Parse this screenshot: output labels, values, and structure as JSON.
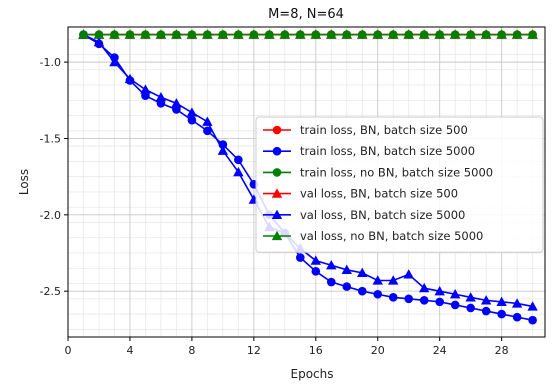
{
  "chart_data": {
    "type": "line",
    "title": "M=8, N=64",
    "xlabel": "Epochs",
    "ylabel": "Loss",
    "xlim": [
      0,
      30.8
    ],
    "ylim": [
      -2.8,
      -0.77
    ],
    "x_ticks": [
      0,
      4,
      8,
      12,
      16,
      20,
      24,
      28
    ],
    "y_ticks": [
      -2.5,
      -2.0,
      -1.5,
      -1.0
    ],
    "x_tick_labels": [
      "0",
      "4",
      "8",
      "12",
      "16",
      "20",
      "24",
      "28"
    ],
    "y_tick_labels": [
      "-2.5",
      "-2.0",
      "-1.5",
      "-1.0"
    ],
    "grid": true,
    "minor_grid": true,
    "legend_position": "center-right",
    "x": [
      1,
      2,
      3,
      4,
      5,
      6,
      7,
      8,
      9,
      10,
      11,
      12,
      13,
      14,
      15,
      16,
      17,
      18,
      19,
      20,
      21,
      22,
      23,
      24,
      25,
      26,
      27,
      28,
      29,
      30
    ],
    "series": [
      {
        "name": "train loss, BN, batch size 500",
        "color": "#ff0000",
        "marker": "circle",
        "values": [
          -0.82,
          -0.82,
          -0.82,
          -0.82,
          -0.82,
          -0.82,
          -0.82,
          -0.82,
          -0.82,
          -0.82,
          -0.82,
          -0.82,
          -0.82,
          -0.82,
          -0.82,
          -0.82,
          -0.82,
          -0.82,
          -0.82,
          -0.82,
          -0.82,
          -0.82,
          -0.82,
          -0.82,
          -0.82,
          -0.82,
          -0.82,
          -0.82,
          -0.82,
          -0.82
        ]
      },
      {
        "name": "train loss, BN, batch size 5000",
        "color": "#0000ff",
        "marker": "circle",
        "values": [
          -0.82,
          -0.88,
          -0.97,
          -1.12,
          -1.22,
          -1.27,
          -1.31,
          -1.38,
          -1.45,
          -1.54,
          -1.64,
          -1.8,
          -2.0,
          -2.12,
          -2.28,
          -2.37,
          -2.44,
          -2.47,
          -2.5,
          -2.52,
          -2.54,
          -2.55,
          -2.56,
          -2.57,
          -2.59,
          -2.61,
          -2.63,
          -2.65,
          -2.67,
          -2.69
        ]
      },
      {
        "name": "train loss, no BN, batch size 5000",
        "color": "#008000",
        "marker": "circle",
        "values": [
          -0.82,
          -0.82,
          -0.82,
          -0.82,
          -0.82,
          -0.82,
          -0.82,
          -0.82,
          -0.82,
          -0.82,
          -0.82,
          -0.82,
          -0.82,
          -0.82,
          -0.82,
          -0.82,
          -0.82,
          -0.82,
          -0.82,
          -0.82,
          -0.82,
          -0.82,
          -0.82,
          -0.82,
          -0.82,
          -0.82,
          -0.82,
          -0.82,
          -0.82,
          -0.82
        ]
      },
      {
        "name": "val loss, BN, batch size 500",
        "color": "#ff0000",
        "marker": "triangle",
        "values": [
          -0.82,
          -0.82,
          -0.82,
          -0.82,
          -0.82,
          -0.82,
          -0.82,
          -0.82,
          -0.82,
          -0.82,
          -0.82,
          -0.82,
          -0.82,
          -0.82,
          -0.82,
          -0.82,
          -0.82,
          -0.82,
          -0.82,
          -0.82,
          -0.82,
          -0.82,
          -0.82,
          -0.82,
          -0.82,
          -0.82,
          -0.82,
          -0.82,
          -0.82,
          -0.82
        ]
      },
      {
        "name": "val loss, BN, batch size 5000",
        "color": "#0000ff",
        "marker": "triangle",
        "values": [
          -0.82,
          -0.87,
          -1.0,
          -1.11,
          -1.18,
          -1.23,
          -1.27,
          -1.33,
          -1.39,
          -1.58,
          -1.72,
          -1.9,
          -2.08,
          -2.12,
          -2.22,
          -2.3,
          -2.33,
          -2.36,
          -2.38,
          -2.43,
          -2.43,
          -2.39,
          -2.48,
          -2.5,
          -2.52,
          -2.54,
          -2.56,
          -2.57,
          -2.58,
          -2.6
        ]
      },
      {
        "name": "val loss, no BN, batch size 5000",
        "color": "#008000",
        "marker": "triangle",
        "values": [
          -0.82,
          -0.82,
          -0.82,
          -0.82,
          -0.82,
          -0.82,
          -0.82,
          -0.82,
          -0.82,
          -0.82,
          -0.82,
          -0.82,
          -0.82,
          -0.82,
          -0.82,
          -0.82,
          -0.82,
          -0.82,
          -0.82,
          -0.82,
          -0.82,
          -0.82,
          -0.82,
          -0.82,
          -0.82,
          -0.82,
          -0.82,
          -0.82,
          -0.82,
          -0.82
        ]
      }
    ]
  }
}
